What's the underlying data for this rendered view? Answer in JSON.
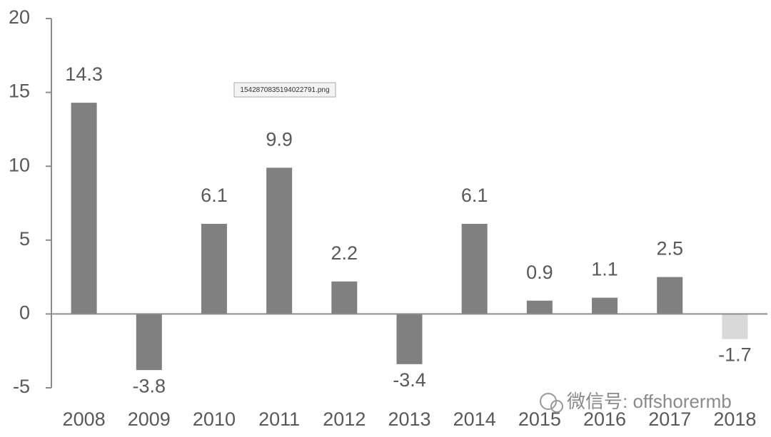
{
  "chart_data": {
    "type": "bar",
    "categories": [
      "2008",
      "2009",
      "2010",
      "2011",
      "2012",
      "2013",
      "2014",
      "2015",
      "2016",
      "2017",
      "2018"
    ],
    "values": [
      14.3,
      -3.8,
      6.1,
      9.9,
      2.2,
      -3.4,
      6.1,
      0.9,
      1.1,
      2.5,
      -1.7
    ],
    "colors": [
      "#808080",
      "#808080",
      "#808080",
      "#808080",
      "#808080",
      "#808080",
      "#808080",
      "#808080",
      "#808080",
      "#808080",
      "#d9d9d9"
    ],
    "ylim": [
      -5,
      20
    ],
    "yticks": [
      -5,
      0,
      5,
      10,
      15,
      20
    ],
    "grid": false,
    "annotations": [
      "1542870835194022791.png",
      "微信号: offshorermb"
    ]
  }
}
